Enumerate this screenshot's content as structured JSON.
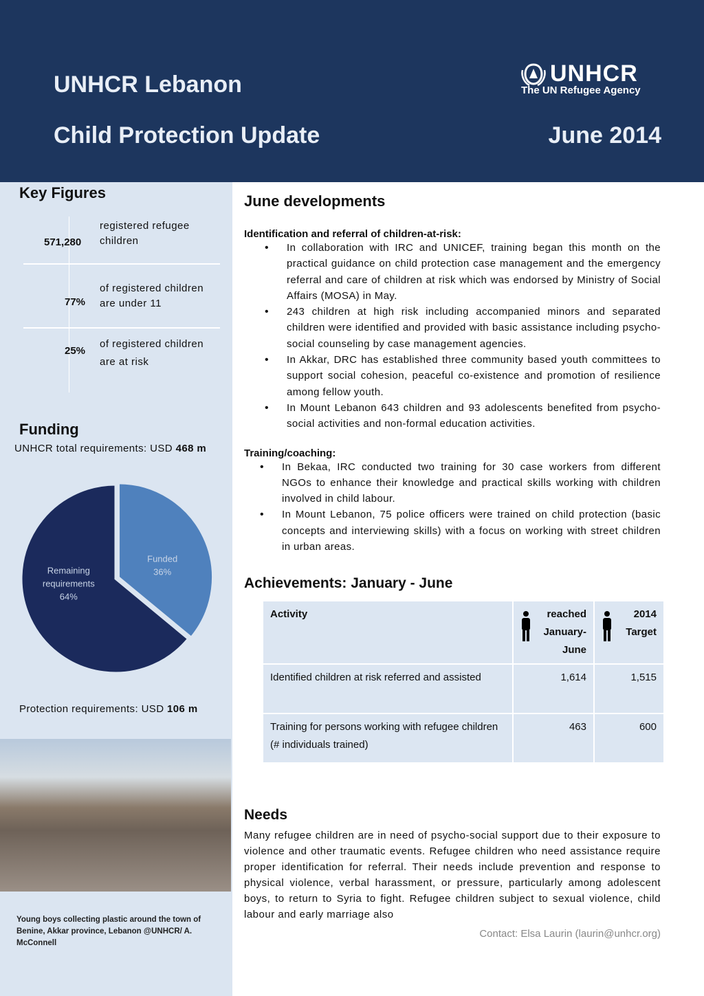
{
  "header": {
    "org": "UNHCR Lebanon",
    "title": "Child Protection Update",
    "date": "June 2014",
    "logo_text": "UNHCR",
    "logo_sub": "The UN Refugee Agency"
  },
  "key_figures": {
    "heading": "Key Figures",
    "items": [
      {
        "value": "571,280",
        "text": "registered refugee children"
      },
      {
        "value": "77%",
        "text": "of registered children are under 11"
      },
      {
        "value": "25%",
        "text": "of registered children are at risk"
      }
    ]
  },
  "funding": {
    "heading": "Funding",
    "total_label": "UNHCR total requirements: USD",
    "total_value": "468 m",
    "protection_label": "Protection requirements: USD",
    "protection_value": "106 m"
  },
  "chart_data": {
    "type": "pie",
    "slices": [
      {
        "label": "Funded",
        "value": 36,
        "color": "#4f81bd"
      },
      {
        "label": "Remaining requirements",
        "value": 64,
        "color": "#1b2a5c"
      }
    ]
  },
  "photo": {
    "caption": "Young boys collecting plastic around the town of Benine, Akkar province, Lebanon @UNHCR/ A. McConnell"
  },
  "developments": {
    "heading": "June developments",
    "sections": [
      {
        "title": "Identification and referral of children-at-risk:",
        "bullets": [
          "In collaboration with IRC and UNICEF, training began this month on the practical guidance on child protection case management and the emergency referral and care of children at risk which was endorsed by Ministry of Social Affairs (MOSA) in May.",
          "243 children at high risk including accompanied minors and separated children were identified and provided with basic assistance including psycho-social counseling by case management agencies.",
          "In Akkar, DRC has established three community based youth committees to support social cohesion, peaceful co-existence and promotion of resilience among fellow youth.",
          "In Mount Lebanon 643 children and 93 adolescents benefited from psycho-social activities and non-formal education activities."
        ]
      },
      {
        "title": "Training/coaching:",
        "bullets": [
          "In Bekaa, IRC conducted two training for 30 case workers from different NGOs to enhance their knowledge and practical skills working with children involved in child labour.",
          "In Mount Lebanon, 75 police officers were trained on child protection (basic concepts and interviewing skills) with a focus on working with street children in urban areas."
        ]
      }
    ]
  },
  "achievements": {
    "heading": "Achievements: January - June",
    "columns": [
      "Activity",
      "reached January-June",
      "2014 Target"
    ],
    "rows": [
      [
        "Identified children at risk referred and assisted",
        "1,614",
        "1,515"
      ],
      [
        "Training for persons working with refugee children (# individuals trained)",
        "463",
        "600"
      ]
    ]
  },
  "needs": {
    "heading": "Needs",
    "text": "Many refugee children are in need of psycho-social support due to their exposure to violence and other traumatic events. Refugee children who need assistance require proper identification for referral. Their needs include prevention and response to physical violence, verbal harassment, or pressure, particularly among adolescent boys, to return to Syria to fight. Refugee children subject to sexual violence, child labour and early marriage also"
  },
  "contact": "Contact: Elsa Laurin (laurin@unhcr.org)"
}
